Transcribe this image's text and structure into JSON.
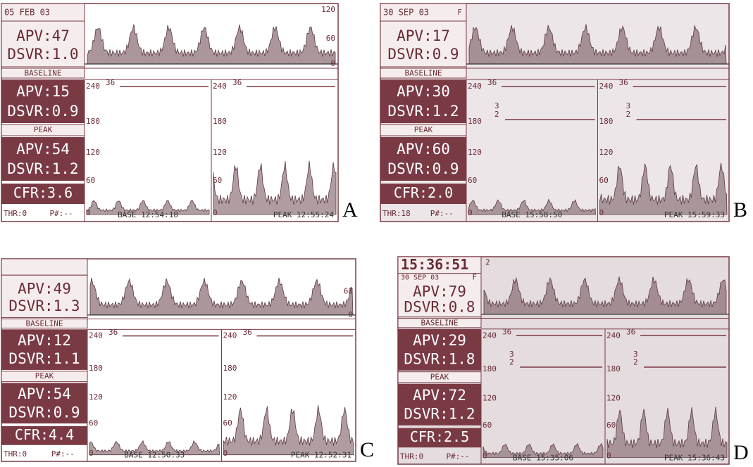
{
  "panels": [
    {
      "letter": "A",
      "date": "05 FEB 03",
      "top": {
        "apv": "APV:47",
        "dsvr": "DSVR:1.0"
      },
      "top_scale": [
        "120",
        "60",
        "0"
      ],
      "baseline": {
        "label": "BASELINE",
        "apv": "APV:15",
        "dsvr": "DSVR:0.9"
      },
      "peak": {
        "label": "PEAK",
        "apv": "APV:54",
        "dsvr": "DSVR:1.2"
      },
      "cfr": "CFR:3.6",
      "thr": "THR:0",
      "pnum": "P#:--",
      "scale": [
        "240",
        "36",
        "180",
        "120",
        "60",
        "0"
      ],
      "base_time": "BASE 12:54:18",
      "peak_time": "PEAK 12:55:24"
    },
    {
      "letter": "B",
      "date": "30 SEP 03",
      "flag": "F",
      "top": {
        "apv": "APV:17",
        "dsvr": "DSVR:0.9"
      },
      "baseline": {
        "label": "BASELINE",
        "apv": "APV:30",
        "dsvr": "DSVR:1.2"
      },
      "peak": {
        "label": "PEAK",
        "apv": "APV:60",
        "dsvr": "DSVR:0.9"
      },
      "cfr": "CFR:2.0",
      "thr": "THR:18",
      "pnum": "P#:--",
      "scale": [
        "240",
        "36",
        "180",
        "120",
        "60",
        "0"
      ],
      "marks": [
        "3",
        "2"
      ],
      "base_time": "BASE 15:58:50",
      "peak_time": "PEAK 15:59:33"
    },
    {
      "letter": "C",
      "top": {
        "apv": "APV:49",
        "dsvr": "DSVR:1.3"
      },
      "top_scale": [
        "60",
        "0"
      ],
      "baseline": {
        "label": "BASELINE",
        "apv": "APV:12",
        "dsvr": "DSVR:1.1"
      },
      "peak": {
        "label": "PEAK",
        "apv": "APV:54",
        "dsvr": "DSVR:0.9"
      },
      "cfr": "CFR:4.4",
      "thr": "THR:0",
      "pnum": "P#:--",
      "scale": [
        "240",
        "36",
        "180",
        "120",
        "60",
        "0"
      ],
      "base_time": "BASE 12:50:33",
      "peak_time": "PEAK 12:52:31"
    },
    {
      "letter": "D",
      "time": "15:36:51",
      "date": "30 SEP 03",
      "flag": "F",
      "top": {
        "apv": "APV:79",
        "dsvr": "DSVR:0.8"
      },
      "top_scale": [
        "2"
      ],
      "baseline": {
        "label": "BASELINE",
        "apv": "APV:29",
        "dsvr": "DSVR:1.8"
      },
      "peak": {
        "label": "PEAK",
        "apv": "APV:72",
        "dsvr": "DSVR:1.2"
      },
      "cfr": "CFR:2.5",
      "thr": "THR:0",
      "pnum": "P#:--",
      "scale": [
        "240",
        "36",
        "180",
        "120",
        "60",
        "0"
      ],
      "marks": [
        "3",
        "2"
      ],
      "base_time": "BASE 15:35:06",
      "peak_time": "PEAK 15:36:43"
    }
  ]
}
